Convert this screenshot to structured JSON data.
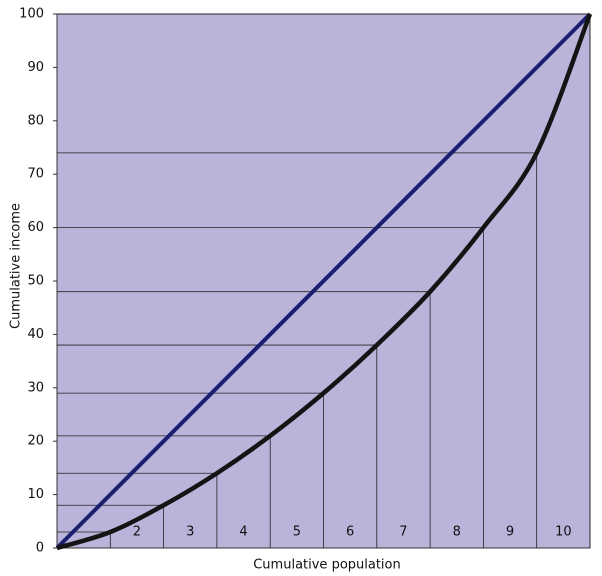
{
  "chart_data": {
    "type": "line",
    "x_label": "Cumulative population",
    "y_label": "Cumulative income",
    "categories": [
      null,
      "2",
      "3",
      "4",
      "5",
      "6",
      "7",
      "8",
      "9",
      "10"
    ],
    "series": [
      {
        "color": "#141414",
        "values": [
          3,
          8,
          14,
          21,
          29,
          38,
          48,
          60,
          74,
          100
        ]
      }
    ],
    "ylim": [
      0,
      100
    ],
    "yticks": [
      0,
      10,
      20,
      30,
      40,
      50,
      60,
      70,
      80,
      90,
      100
    ],
    "background": "#b8b4da",
    "equality_line_color": "#1e1e70",
    "guide_lines": true
  }
}
